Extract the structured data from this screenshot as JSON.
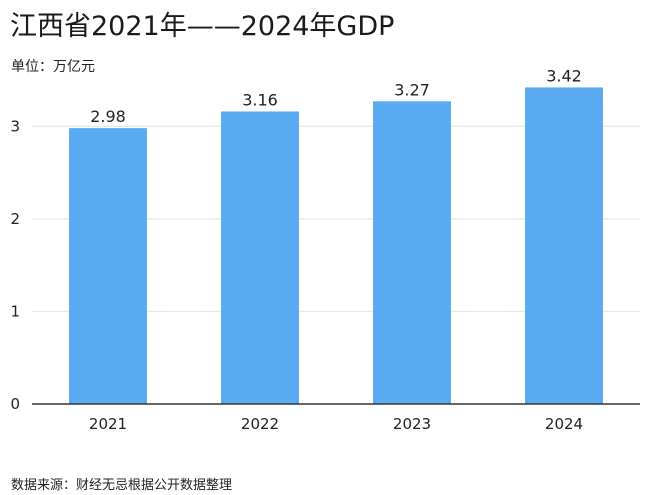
{
  "title": "江西省2021年——2024年GDP",
  "unit_label": "单位：万亿元",
  "source_label": "数据来源：财经无忌根据公开数据整理",
  "colors": {
    "bar": "#5aacf2",
    "grid": "#e3e3e3",
    "axis": "#333333"
  },
  "chart_data": {
    "type": "bar",
    "categories": [
      "2021",
      "2022",
      "2023",
      "2024"
    ],
    "values": [
      2.98,
      3.16,
      3.27,
      3.42
    ],
    "value_labels": [
      "2.98",
      "3.16",
      "3.27",
      "3.42"
    ],
    "yticks": [
      0,
      1,
      2,
      3
    ],
    "ylim": [
      0,
      3.5
    ],
    "grid": true,
    "title": "江西省2021年——2024年GDP",
    "xlabel": "",
    "ylabel": "万亿元"
  }
}
